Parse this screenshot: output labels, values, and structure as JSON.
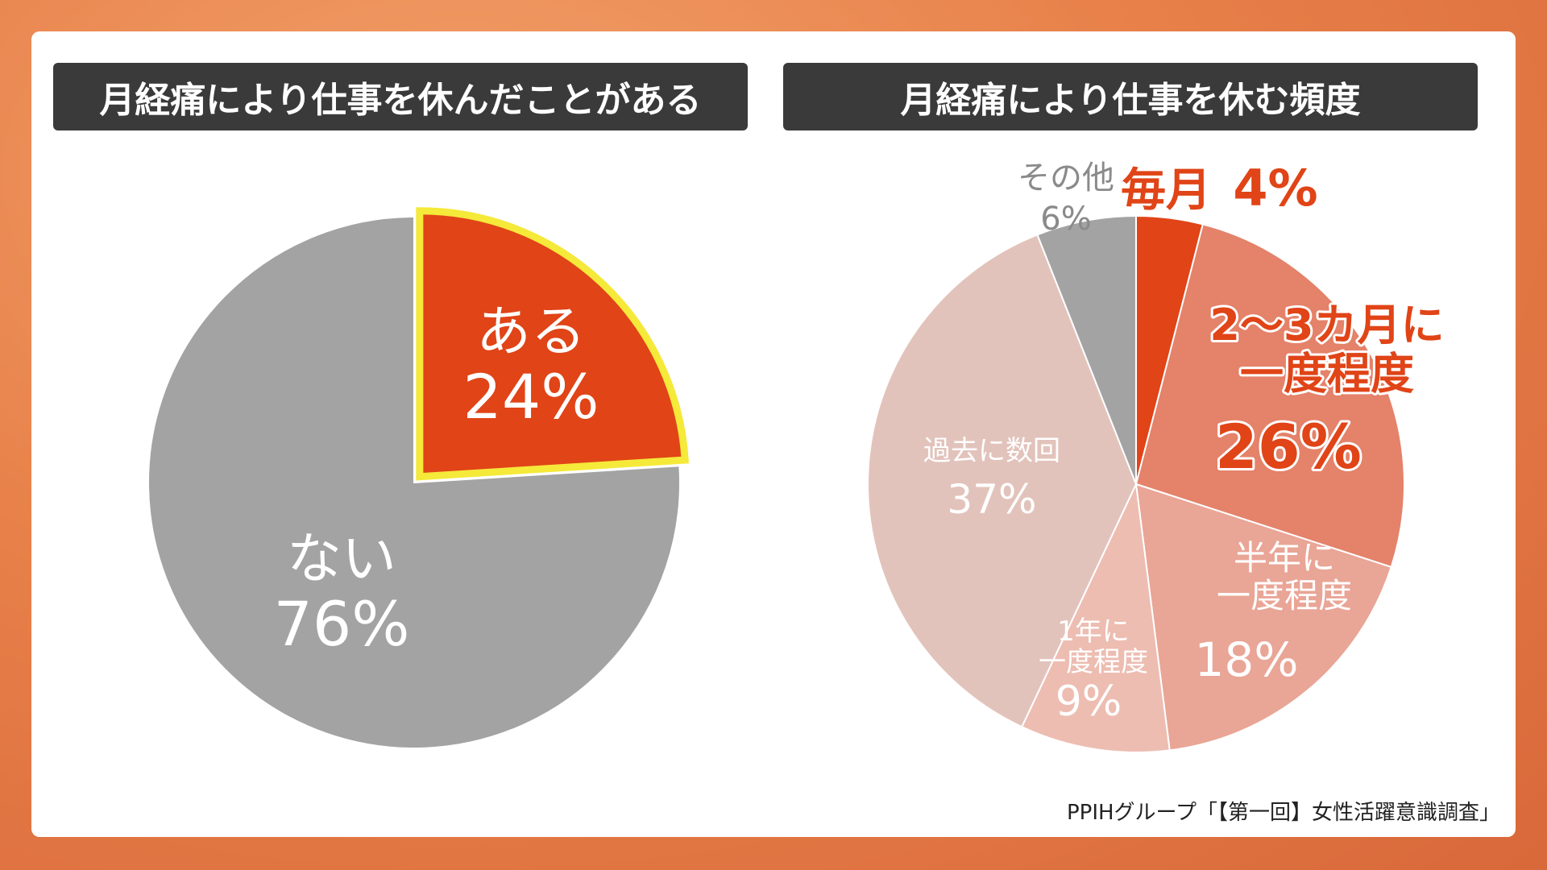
{
  "source": "PPIHグループ「【第一回】女性活躍意識調査」",
  "colors": {
    "accent": "#e04417",
    "highlight_border": "#f5e93a",
    "gray": "#a3a3a3"
  },
  "chart_data": [
    {
      "type": "pie",
      "title": "月経痛により仕事を休んだことがある",
      "slices": [
        {
          "label": "ある",
          "value": 24,
          "pct": "24%",
          "color": "#e04417",
          "text_color": "#ffffff",
          "highlight": true
        },
        {
          "label": "ない",
          "value": 76,
          "pct": "76%",
          "color": "#a3a3a3",
          "text_color": "#ffffff"
        }
      ]
    },
    {
      "type": "pie",
      "title": "月経痛により仕事を休む頻度",
      "slices": [
        {
          "label": "毎月",
          "value": 4,
          "pct": "4%",
          "color": "#e04417",
          "text_color": "#e04417"
        },
        {
          "label": "2〜3カ月に\n一度程度",
          "value": 26,
          "pct": "26%",
          "color": "#e4826a",
          "text_color": "#e04417"
        },
        {
          "label": "半年に\n一度程度",
          "value": 18,
          "pct": "18%",
          "color": "#e9a596",
          "text_color": "#ffffff"
        },
        {
          "label": "1年に\n一度程度",
          "value": 9,
          "pct": "9%",
          "color": "#edbdb2",
          "text_color": "#ffffff"
        },
        {
          "label": "過去に数回",
          "value": 37,
          "pct": "37%",
          "color": "#e2c3bb",
          "text_color": "#ffffff"
        },
        {
          "label": "その他",
          "value": 6,
          "pct": "6%",
          "color": "#a3a3a3",
          "text_color": "#8a8a8a"
        }
      ]
    }
  ]
}
